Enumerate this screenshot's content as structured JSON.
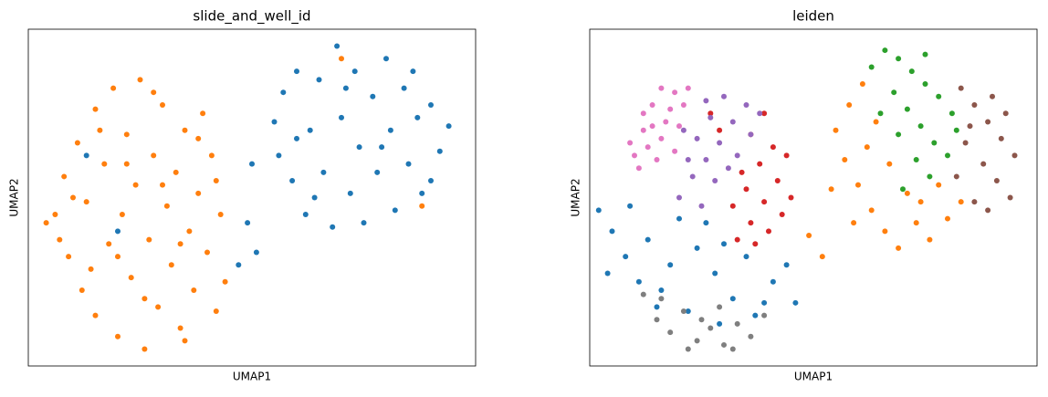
{
  "chart_data": [
    {
      "type": "scatter",
      "title": "slide_and_well_id",
      "xlabel": "UMAP1",
      "ylabel": "UMAP2",
      "xlim": [
        0,
        10
      ],
      "ylim": [
        0,
        8
      ],
      "series": [
        {
          "color": "#1f77b4",
          "x": [
            5.5,
            5.6,
            5.7,
            5.9,
            6.0,
            6.2,
            6.3,
            6.5,
            6.6,
            6.8,
            6.9,
            7.0,
            7.2,
            7.3,
            7.4,
            7.5,
            7.7,
            7.8,
            8.0,
            8.1,
            8.2,
            8.4,
            8.5,
            8.7,
            8.8,
            9.0,
            9.2,
            9.4,
            9.0,
            6.4,
            7.1,
            7.9,
            8.6,
            6.0,
            5.0,
            4.9,
            5.1,
            4.7,
            2.0,
            1.3
          ],
          "y": [
            5.8,
            5.0,
            6.5,
            4.4,
            7.0,
            3.6,
            5.6,
            6.8,
            4.6,
            3.3,
            7.6,
            5.9,
            4.1,
            7.0,
            5.2,
            3.4,
            6.4,
            4.6,
            7.3,
            5.6,
            3.7,
            6.6,
            4.8,
            5.9,
            4.1,
            6.2,
            5.1,
            5.7,
            4.4,
            4.0,
            6.6,
            5.2,
            7.0,
            5.4,
            4.8,
            3.4,
            2.7,
            2.4,
            3.2,
            5.0
          ]
        },
        {
          "color": "#ff7f0e",
          "x": [
            0.6,
            0.8,
            0.9,
            1.1,
            1.2,
            1.3,
            1.5,
            1.5,
            1.7,
            1.8,
            1.9,
            2.0,
            2.1,
            2.2,
            2.3,
            2.4,
            2.5,
            2.6,
            2.7,
            2.8,
            2.9,
            3.0,
            3.1,
            3.2,
            3.3,
            3.4,
            3.5,
            3.6,
            3.7,
            3.8,
            3.9,
            4.0,
            4.1,
            4.2,
            4.3,
            4.4,
            0.7,
            1.0,
            1.4,
            1.6,
            2.2,
            2.6,
            3.0,
            3.4,
            3.8,
            4.2,
            0.4,
            2.0,
            2.8,
            3.5,
            7.0,
            8.8
          ],
          "y": [
            3.6,
            4.5,
            2.6,
            5.3,
            1.8,
            3.9,
            6.1,
            1.2,
            4.8,
            2.9,
            6.6,
            0.7,
            3.6,
            5.5,
            2.1,
            4.3,
            6.8,
            0.4,
            3.0,
            5.0,
            1.4,
            6.2,
            3.8,
            2.4,
            4.6,
            0.9,
            5.6,
            3.2,
            1.8,
            4.1,
            6.0,
            2.7,
            5.0,
            1.3,
            3.6,
            2.0,
            3.0,
            4.0,
            2.3,
            5.6,
            4.8,
            1.6,
            4.3,
            2.9,
            5.4,
            4.4,
            3.4,
            2.6,
            6.5,
            0.6,
            7.3,
            3.8
          ]
        }
      ]
    },
    {
      "type": "scatter",
      "title": "leiden",
      "xlabel": "UMAP1",
      "ylabel": "UMAP2",
      "xlim": [
        0,
        10
      ],
      "ylim": [
        0,
        8
      ],
      "series": [
        {
          "color": "#1f77b4",
          "x": [
            0.2,
            0.5,
            0.8,
            1.1,
            1.5,
            2.0,
            2.4,
            2.8,
            3.2,
            3.7,
            4.1,
            4.6,
            1.3,
            1.8,
            2.6,
            3.5,
            0.9,
            1.6,
            2.2,
            3.0,
            4.4,
            0.4,
            2.9,
            3.9
          ],
          "y": [
            3.7,
            3.2,
            2.6,
            2.0,
            1.4,
            3.5,
            2.8,
            2.2,
            1.6,
            1.2,
            2.0,
            1.5,
            3.0,
            2.4,
            3.4,
            2.6,
            3.8,
            1.8,
            1.3,
            2.9,
            2.4,
            2.2,
            1.0,
            1.5
          ]
        },
        {
          "color": "#ff7f0e",
          "x": [
            5.5,
            5.8,
            6.1,
            6.4,
            5.7,
            6.0,
            6.3,
            6.6,
            6.9,
            7.3,
            7.6,
            8.0,
            8.3,
            7.1,
            6.7,
            5.4,
            5.9,
            7.8,
            4.9,
            5.2,
            6.2,
            7.4
          ],
          "y": [
            5.6,
            6.2,
            6.7,
            5.8,
            4.9,
            4.3,
            3.7,
            3.2,
            2.8,
            3.4,
            3.0,
            3.5,
            3.9,
            4.1,
            4.8,
            4.2,
            3.4,
            4.3,
            3.1,
            2.6,
            5.2,
            3.9
          ]
        },
        {
          "color": "#2ca02c",
          "x": [
            6.3,
            6.6,
            6.9,
            7.2,
            7.5,
            7.8,
            8.1,
            6.8,
            7.1,
            7.4,
            7.7,
            8.0,
            6.9,
            7.3,
            6.5,
            7.6,
            7.0,
            8.2,
            7.5
          ],
          "y": [
            7.1,
            7.5,
            7.3,
            7.0,
            6.7,
            6.4,
            6.0,
            6.5,
            6.1,
            5.7,
            5.3,
            5.0,
            5.5,
            4.9,
            6.0,
            4.5,
            4.2,
            5.6,
            7.4
          ]
        },
        {
          "color": "#d62728",
          "x": [
            3.3,
            3.6,
            3.9,
            4.2,
            3.5,
            3.8,
            4.1,
            3.6,
            4.4,
            3.2,
            2.9,
            3.9,
            4.5,
            3.4,
            4.0,
            2.7,
            4.3,
            3.7
          ],
          "y": [
            3.0,
            3.4,
            3.9,
            4.4,
            4.2,
            4.8,
            5.2,
            5.5,
            5.0,
            3.8,
            5.6,
            6.0,
            4.0,
            4.6,
            3.2,
            6.0,
            3.6,
            2.9
          ]
        },
        {
          "color": "#9467bd",
          "x": [
            2.0,
            2.3,
            2.6,
            2.9,
            3.2,
            3.5,
            2.4,
            2.7,
            3.0,
            2.2,
            2.8,
            3.3,
            2.5,
            3.6,
            2.1,
            3.1,
            2.6,
            3.8
          ],
          "y": [
            4.0,
            4.5,
            4.9,
            5.3,
            5.8,
            6.2,
            5.4,
            5.9,
            6.4,
            4.9,
            4.4,
            5.0,
            3.8,
            5.5,
            5.6,
            4.7,
            6.3,
            6.0
          ]
        },
        {
          "color": "#8c564b",
          "x": [
            8.3,
            8.6,
            8.9,
            9.2,
            9.5,
            8.4,
            8.8,
            9.1,
            9.4,
            8.6,
            8.2,
            9.0,
            9.3,
            8.5,
            8.9
          ],
          "y": [
            6.6,
            6.2,
            5.8,
            5.4,
            5.0,
            5.3,
            4.8,
            4.4,
            4.0,
            3.9,
            4.5,
            6.4,
            6.0,
            5.7,
            3.7
          ]
        },
        {
          "color": "#e377c2",
          "x": [
            1.0,
            1.2,
            1.4,
            1.6,
            1.9,
            2.1,
            1.3,
            1.7,
            1.1,
            1.5,
            2.0,
            1.8,
            1.2,
            1.6,
            0.9,
            2.2,
            1.4,
            1.9
          ],
          "y": [
            5.0,
            5.6,
            6.2,
            6.6,
            6.5,
            6.2,
            5.2,
            5.8,
            4.7,
            4.9,
            5.7,
            6.1,
            6.0,
            5.4,
            5.3,
            6.6,
            5.7,
            5.1
          ]
        },
        {
          "color": "#7f7f7f",
          "x": [
            1.2,
            1.5,
            1.8,
            2.1,
            2.4,
            2.7,
            3.0,
            3.3,
            3.6,
            3.9,
            2.2,
            2.9,
            1.6,
            3.2,
            2.5
          ],
          "y": [
            1.7,
            1.1,
            0.8,
            1.3,
            0.6,
            0.9,
            0.5,
            1.0,
            0.7,
            1.2,
            0.4,
            1.4,
            1.6,
            0.4,
            1.1
          ]
        }
      ]
    }
  ]
}
